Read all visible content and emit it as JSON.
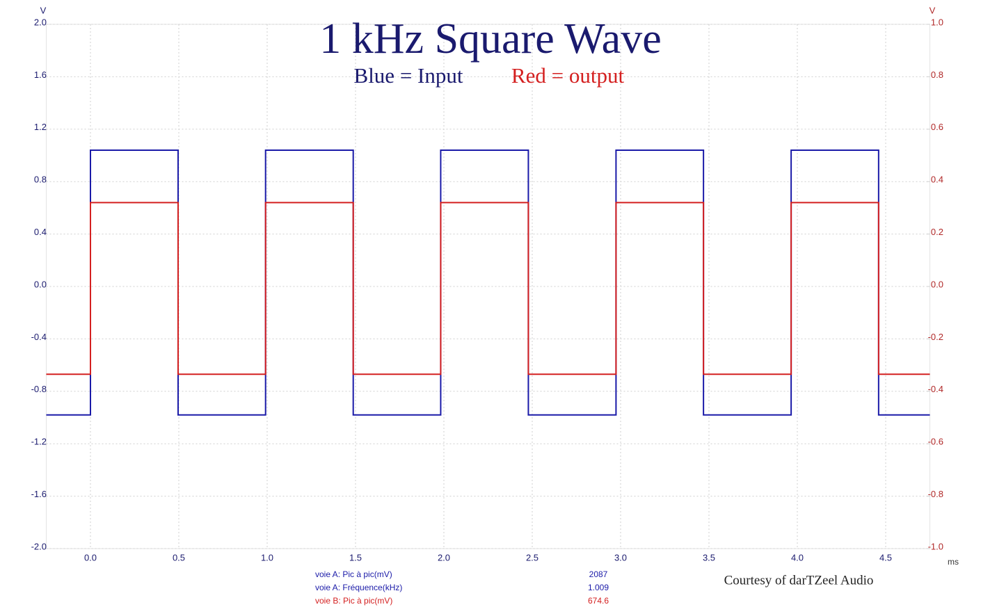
{
  "chart_data": {
    "type": "line",
    "title": "1 kHz Square Wave",
    "subtitle_parts": [
      {
        "text": "Blue = Input",
        "color": "#1a1a6e"
      },
      {
        "text": "Red = output",
        "color": "#d42020"
      }
    ],
    "y_unit": "V",
    "y2_unit": "V",
    "x_unit": "ms",
    "annotation": "Courtesy of darTZeel Audio",
    "measurements": [
      {
        "label": "voie A: Pic à pic(mV)",
        "value": 2087,
        "color": "#1a1aa8"
      },
      {
        "label": "voie A: Fréquence(kHz)",
        "value": 1.009,
        "color": "#1a1aa8"
      },
      {
        "label": "voie B: Pic à pic(mV)",
        "value": 674.6,
        "color": "#d42020"
      }
    ],
    "x": [
      -0.25,
      0,
      0,
      0.496,
      0.496,
      0.991,
      0.991,
      1.487,
      1.487,
      1.982,
      1.982,
      2.478,
      2.478,
      2.974,
      2.974,
      3.469,
      3.469,
      3.965,
      3.965,
      4.46,
      4.46,
      4.75
    ],
    "series": [
      {
        "name": "Input",
        "color": "#1a1aa8",
        "axis": "y",
        "values": [
          -0.98,
          -0.98,
          1.04,
          1.04,
          -0.98,
          -0.98,
          1.04,
          1.04,
          -0.98,
          -0.98,
          1.04,
          1.04,
          -0.98,
          -0.98,
          1.04,
          1.04,
          -0.98,
          -0.98,
          1.04,
          1.04,
          -0.98,
          -0.98
        ]
      },
      {
        "name": "output",
        "color": "#d42020",
        "axis": "y2",
        "values": [
          -0.335,
          -0.335,
          0.32,
          0.32,
          -0.335,
          -0.335,
          0.32,
          0.32,
          -0.335,
          -0.335,
          0.32,
          0.32,
          -0.335,
          -0.335,
          0.32,
          0.32,
          -0.335,
          -0.335,
          0.32,
          0.32,
          -0.335,
          -0.335
        ]
      }
    ],
    "xlim": [
      -0.25,
      4.75
    ],
    "xticks": [
      {
        "value": 0,
        "label": "0.0"
      },
      0.5,
      {
        "value": 1,
        "label": "1.0"
      },
      1.5,
      {
        "value": 2,
        "label": "2.0"
      },
      2.5,
      {
        "value": 3,
        "label": "3.0"
      },
      3.5,
      {
        "value": 4,
        "label": "4.0"
      },
      4.5
    ],
    "ylim": [
      -2,
      2
    ],
    "yticks": [
      {
        "value": -2,
        "label": "-2.0"
      },
      -1.6,
      -1.2,
      -0.8,
      -0.4,
      {
        "value": 0,
        "label": "0.0"
      },
      0.4,
      0.8,
      1.2,
      1.6,
      {
        "value": 2,
        "label": "2.0"
      }
    ],
    "y2lim": [
      -1,
      1
    ],
    "y2ticks": [
      {
        "value": -1,
        "label": "-1.0"
      },
      -0.8,
      -0.6,
      -0.4,
      -0.2,
      {
        "value": 0,
        "label": "0.0"
      },
      0.2,
      0.4,
      0.6,
      0.8,
      {
        "value": 1,
        "label": "1.0"
      }
    ],
    "grid": true
  }
}
